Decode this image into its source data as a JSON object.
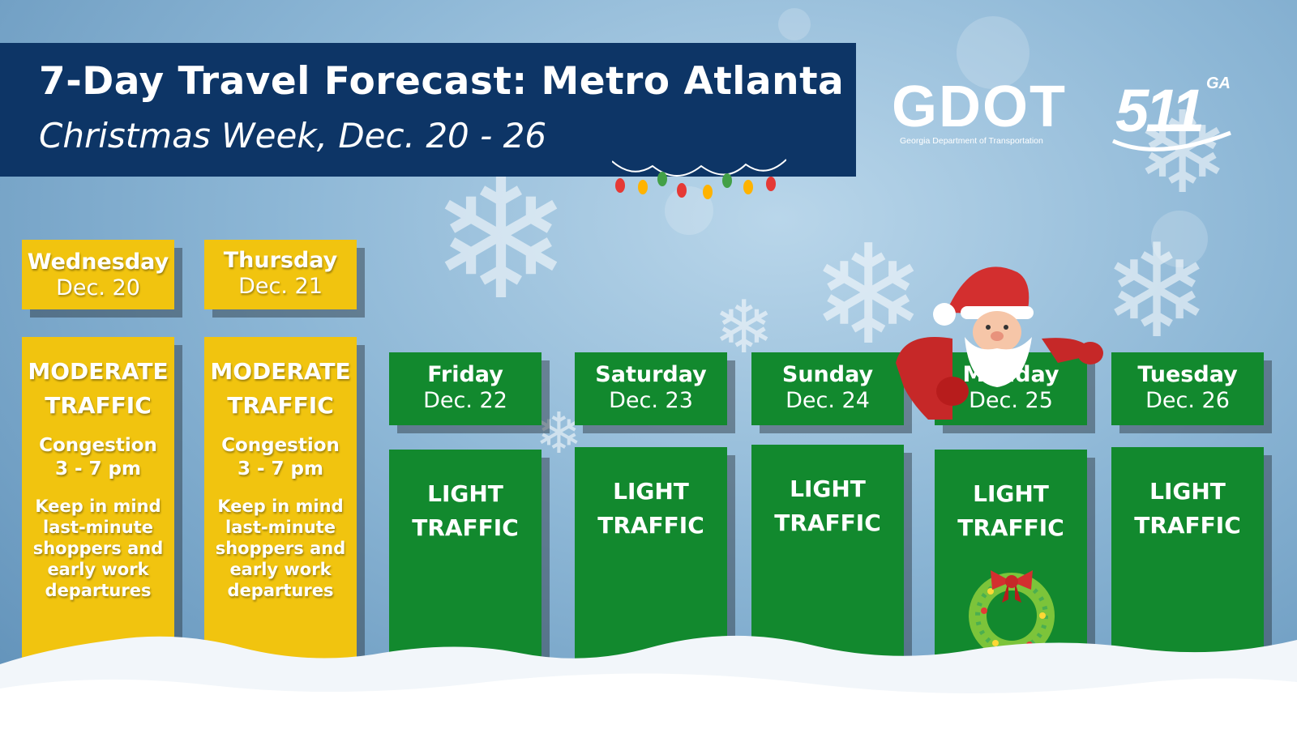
{
  "header": {
    "title": "7-Day Travel Forecast: Metro Atlanta",
    "subtitle": "Christmas Week, Dec. 20 - 26"
  },
  "logos": {
    "gdot_word": "GDOT",
    "gdot_sub": "Georgia Department of Transportation",
    "511_num": "511",
    "511_ga": "GA"
  },
  "days": [
    {
      "day": "Wednesday",
      "date": "Dec. 20",
      "status_line1": "MODERATE",
      "status_line2": "TRAFFIC",
      "congestion_line1": "Congestion",
      "congestion_line2": "3 - 7 pm",
      "note_lines": [
        "Keep in mind",
        "last-minute",
        "shoppers and",
        "early work",
        "departures"
      ]
    },
    {
      "day": "Thursday",
      "date": "Dec. 21",
      "status_line1": "MODERATE",
      "status_line2": "TRAFFIC",
      "congestion_line1": "Congestion",
      "congestion_line2": "3 - 7 pm",
      "note_lines": [
        "Keep in mind",
        "last-minute",
        "shoppers and",
        "early work",
        "departures"
      ]
    },
    {
      "day": "Friday",
      "date": "Dec. 22",
      "status_line1": "LIGHT",
      "status_line2": "TRAFFIC"
    },
    {
      "day": "Saturday",
      "date": "Dec. 23",
      "status_line1": "LIGHT",
      "status_line2": "TRAFFIC"
    },
    {
      "day": "Sunday",
      "date": "Dec. 24",
      "status_line1": "LIGHT",
      "status_line2": "TRAFFIC"
    },
    {
      "day": "Monday",
      "date": "Dec. 25",
      "status_line1": "LIGHT",
      "status_line2": "TRAFFIC"
    },
    {
      "day": "Tuesday",
      "date": "Dec. 26",
      "status_line1": "LIGHT",
      "status_line2": "TRAFFIC"
    }
  ],
  "colors": {
    "banner": "#0d3566",
    "moderate": "#f1c40f",
    "light": "#12892e"
  }
}
